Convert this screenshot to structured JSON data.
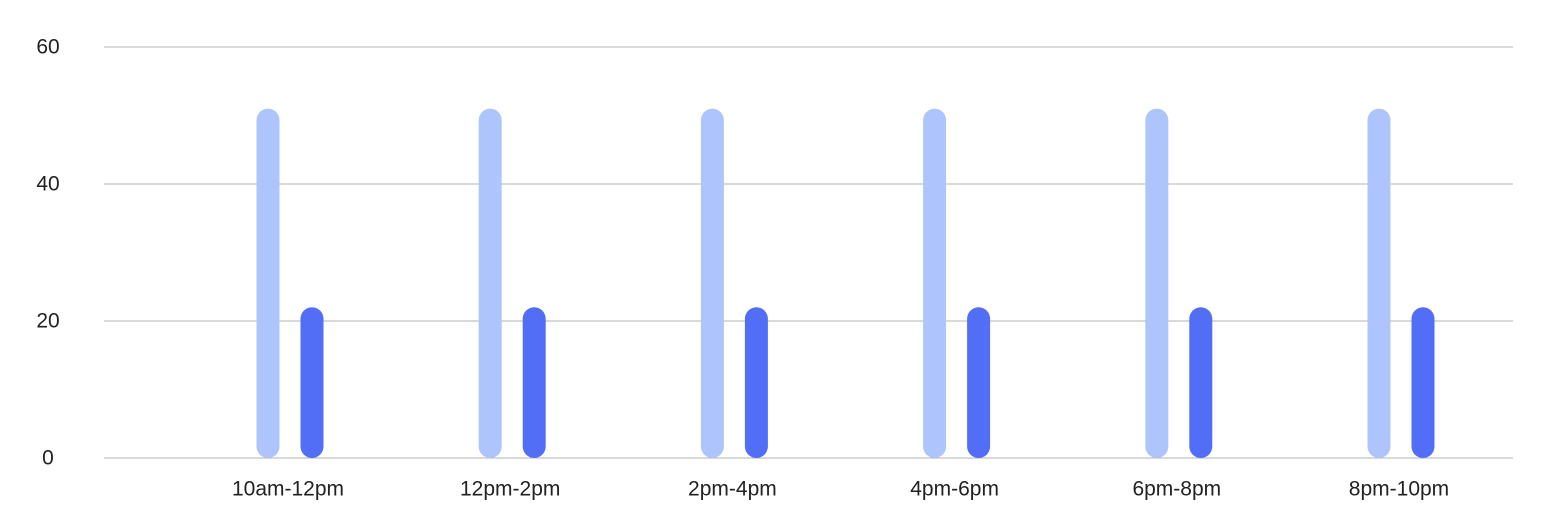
{
  "chart_data": {
    "type": "bar",
    "title": "",
    "xlabel": "",
    "ylabel": "",
    "categories": [
      "10am-12pm",
      "12pm-2pm",
      "2pm-4pm",
      "4pm-6pm",
      "6pm-8pm",
      "8pm-10pm"
    ],
    "series": [
      {
        "values": [
          51,
          51,
          51,
          51,
          51,
          51
        ],
        "color": "#aec4fc"
      },
      {
        "values": [
          22,
          22,
          22,
          22,
          22,
          22
        ],
        "color": "#536ef6"
      }
    ],
    "ylim": [
      0,
      60
    ],
    "yticks": [
      0,
      20,
      40,
      60
    ],
    "grid": true,
    "legend": "none"
  }
}
